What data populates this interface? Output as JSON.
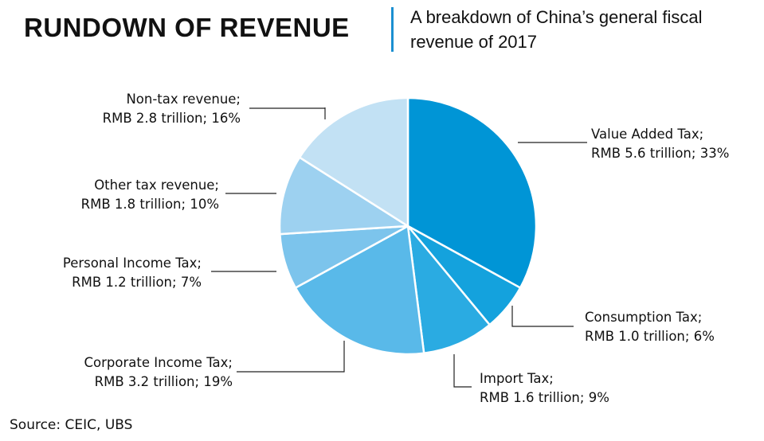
{
  "header": {
    "title": "RUNDOWN OF REVENUE",
    "subtitle": "A breakdown of China’s general fiscal revenue of 2017"
  },
  "source": "Source: CEIC, UBS",
  "chart_data": {
    "type": "pie",
    "title": "RUNDOWN OF REVENUE",
    "subtitle": "A breakdown of China’s general fiscal revenue of 2017",
    "unit": "RMB trillion",
    "slices": [
      {
        "name": "Value Added Tax",
        "value": 5.6,
        "percent": 33,
        "color": "#0095d6",
        "label_line1": "Value Added Tax;",
        "label_line2": "RMB 5.6 trillion; 33%"
      },
      {
        "name": "Consumption Tax",
        "value": 1.0,
        "percent": 6,
        "color": "#14a2dd",
        "label_line1": "Consumption Tax;",
        "label_line2": "RMB 1.0 trillion; 6%"
      },
      {
        "name": "Import Tax",
        "value": 1.6,
        "percent": 9,
        "color": "#2aabe2",
        "label_line1": "Import Tax;",
        "label_line2": "RMB 1.6 trillion; 9%"
      },
      {
        "name": "Corporate Income Tax",
        "value": 3.2,
        "percent": 19,
        "color": "#59b9e9",
        "label_line1": "Corporate Income Tax;",
        "label_line2": "RMB 3.2 trillion; 19%"
      },
      {
        "name": "Personal Income Tax",
        "value": 1.2,
        "percent": 7,
        "color": "#7cc4ec",
        "label_line1": "Personal Income Tax;",
        "label_line2": "RMB 1.2 trillion; 7%"
      },
      {
        "name": "Other tax revenue",
        "value": 1.8,
        "percent": 10,
        "color": "#9dd1f0",
        "label_line1": "Other tax revenue;",
        "label_line2": "RMB 1.8 trillion; 10%"
      },
      {
        "name": "Non-tax revenue",
        "value": 2.8,
        "percent": 16,
        "color": "#c2e1f4",
        "label_line1": "Non-tax revenue;",
        "label_line2": "RMB 2.8 trillion; 16%"
      }
    ]
  }
}
